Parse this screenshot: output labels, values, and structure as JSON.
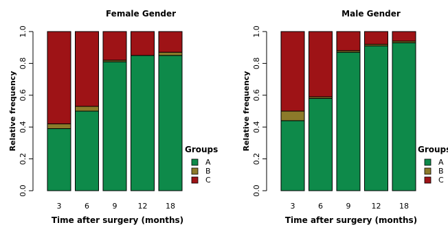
{
  "chart_data": [
    {
      "type": "bar",
      "stacked": true,
      "title": "Female Gender",
      "xlabel": "Time after surgery (months)",
      "ylabel": "Relative frequency",
      "categories": [
        "3",
        "6",
        "9",
        "12",
        "18"
      ],
      "ylim": [
        0,
        1
      ],
      "yticks": [
        "0.0",
        "0.2",
        "0.4",
        "0.6",
        "0.8",
        "1.0"
      ],
      "series": [
        {
          "name": "A",
          "color": "#0e8a4a",
          "values": [
            0.39,
            0.5,
            0.81,
            0.85,
            0.85
          ]
        },
        {
          "name": "B",
          "color": "#8c7a2a",
          "values": [
            0.03,
            0.03,
            0.01,
            0.0,
            0.02
          ]
        },
        {
          "name": "C",
          "color": "#9e1316",
          "values": [
            0.58,
            0.47,
            0.18,
            0.15,
            0.13
          ]
        }
      ],
      "legend": {
        "title": "Groups",
        "items": [
          "A",
          "B",
          "C"
        ],
        "position": "right"
      }
    },
    {
      "type": "bar",
      "stacked": true,
      "title": "Male Gender",
      "xlabel": "Time after surgery (months)",
      "ylabel": "Relative frequency",
      "categories": [
        "3",
        "6",
        "9",
        "12",
        "18"
      ],
      "ylim": [
        0,
        1
      ],
      "yticks": [
        "0.0",
        "0.2",
        "0.4",
        "0.6",
        "0.8",
        "1.0"
      ],
      "series": [
        {
          "name": "A",
          "color": "#0e8a4a",
          "values": [
            0.44,
            0.58,
            0.87,
            0.91,
            0.93
          ]
        },
        {
          "name": "B",
          "color": "#8c7a2a",
          "values": [
            0.06,
            0.01,
            0.01,
            0.01,
            0.01
          ]
        },
        {
          "name": "C",
          "color": "#9e1316",
          "values": [
            0.5,
            0.41,
            0.12,
            0.08,
            0.06
          ]
        }
      ],
      "legend": {
        "title": "Groups",
        "items": [
          "A",
          "B",
          "C"
        ],
        "position": "right"
      }
    }
  ]
}
